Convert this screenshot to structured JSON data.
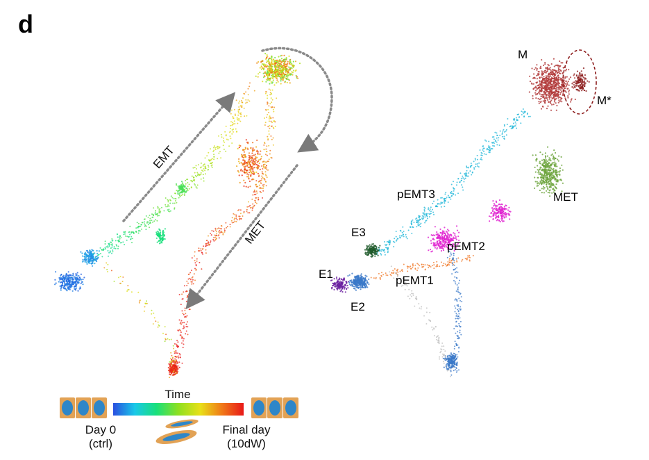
{
  "panel_label": "d",
  "left_panel": {
    "arrow_labels": {
      "emt": "EMT",
      "met": "MET"
    }
  },
  "right_panel": {
    "clusters": [
      {
        "id": "M",
        "label": "M",
        "color": "#b23a3a"
      },
      {
        "id": "Mstar",
        "label": "M*",
        "color": "#8b1a1a"
      },
      {
        "id": "MET",
        "label": "MET",
        "color": "#6aa33a"
      },
      {
        "id": "pEMT3",
        "label": "pEMT3",
        "color": "#1cb5d8"
      },
      {
        "id": "pEMT2",
        "label": "pEMT2",
        "color": "#e020d0"
      },
      {
        "id": "pEMT1",
        "label": "pEMT1",
        "color": "#f07a2a"
      },
      {
        "id": "E3",
        "label": "E3",
        "color": "#1f5a2a"
      },
      {
        "id": "E1",
        "label": "E1",
        "color": "#6a1fa0"
      },
      {
        "id": "E2",
        "label": "E2",
        "color": "#3a78c8"
      }
    ]
  },
  "colorbar": {
    "title": "Time",
    "start_label_line1": "Day 0",
    "start_label_line2": "(ctrl)",
    "end_label_line1": "Final day",
    "end_label_line2": "(10dW)",
    "gradient_colors": [
      "#2a4fe0",
      "#19c8e8",
      "#19e07a",
      "#8fe020",
      "#e8e018",
      "#f07a18",
      "#e81818"
    ]
  }
}
